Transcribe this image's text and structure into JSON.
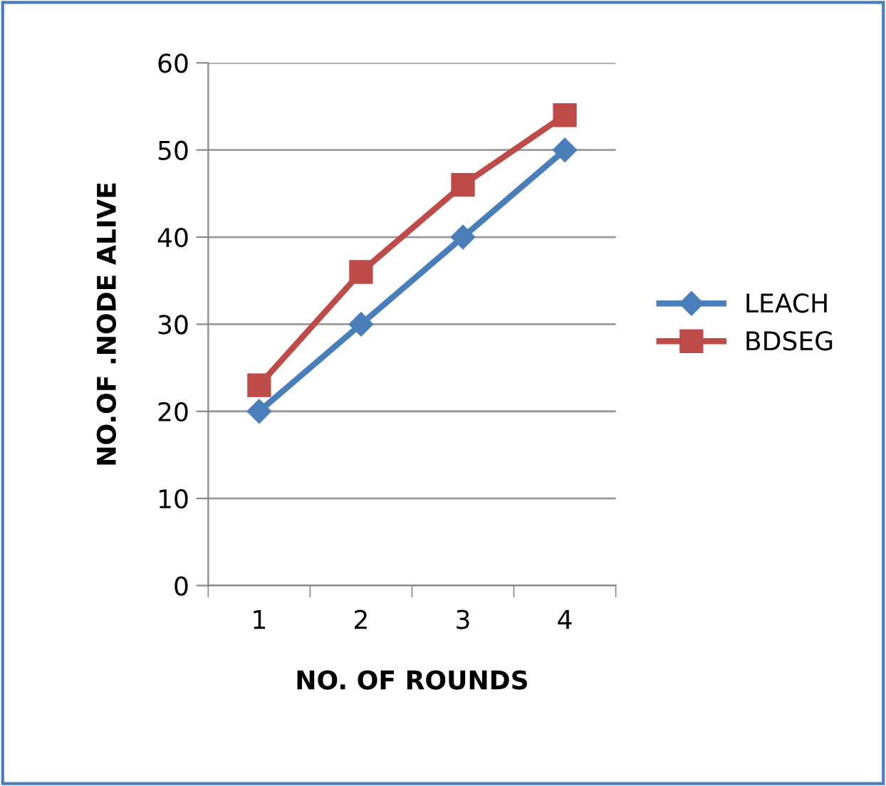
{
  "chart_data": {
    "type": "line",
    "xlabel": "NO. OF ROUNDS",
    "ylabel": "NO.OF .NODE ALIVE",
    "categories": [
      "1",
      "2",
      "3",
      "4"
    ],
    "series": [
      {
        "name": "LEACH",
        "color": "#4a7ebb",
        "marker": "diamond",
        "values": [
          20,
          30,
          40,
          50
        ]
      },
      {
        "name": "BDSEG",
        "color": "#be4b48",
        "marker": "square",
        "values": [
          23,
          36,
          46,
          54
        ]
      }
    ],
    "ylim": [
      0,
      60
    ],
    "yticks": [
      0,
      10,
      20,
      30,
      40,
      50,
      60
    ],
    "grid": "y",
    "legend": "right",
    "line_style": "solid"
  }
}
